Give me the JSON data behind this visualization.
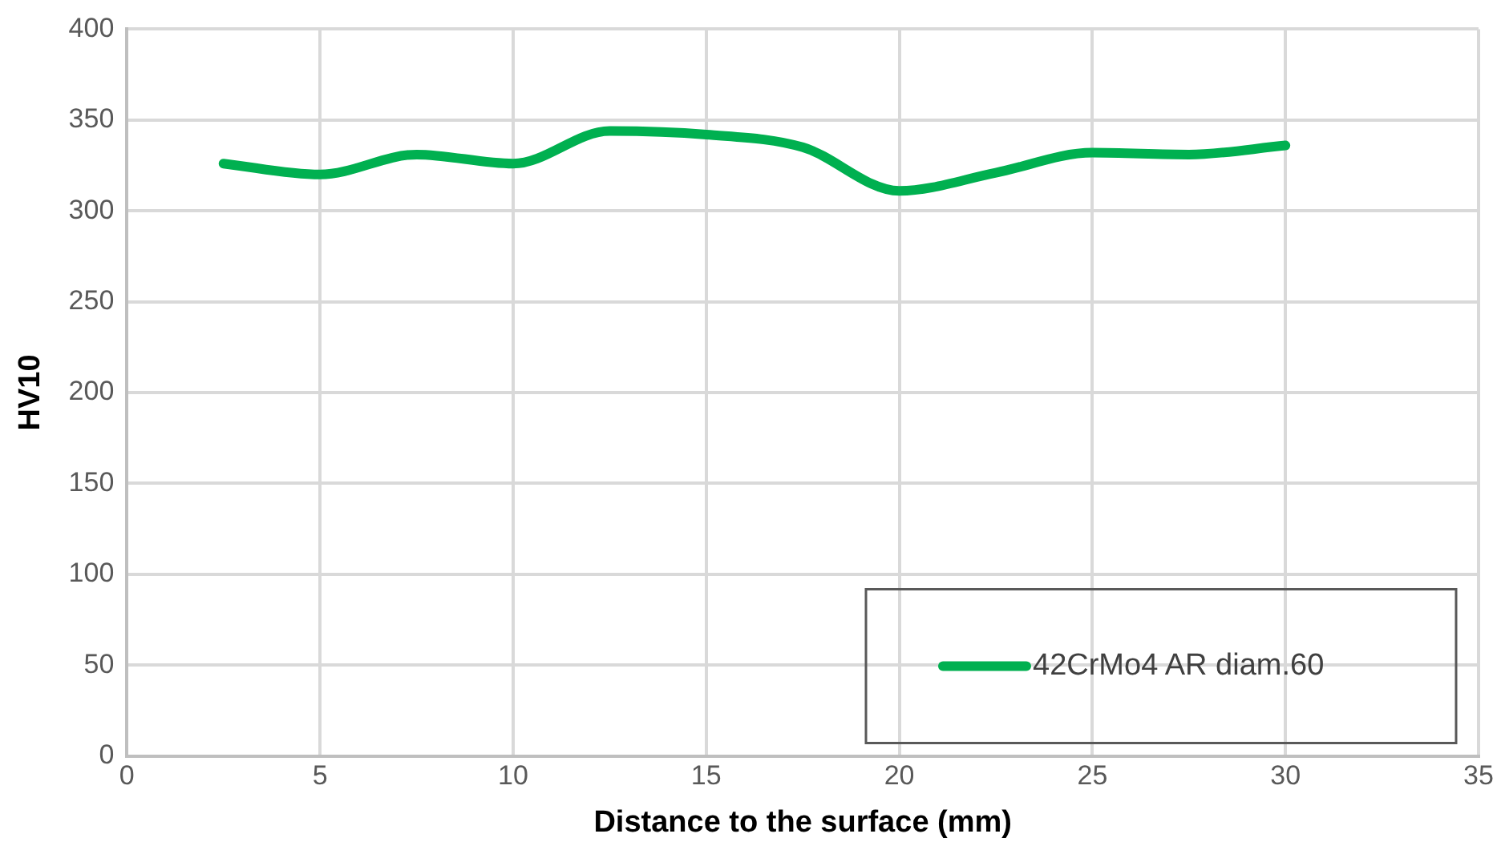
{
  "chart_data": {
    "type": "line",
    "xlabel": "Distance to the surface (mm)",
    "ylabel": "HV10",
    "x": [
      2.5,
      5,
      7.5,
      10,
      12.5,
      15,
      17.5,
      20,
      22.5,
      25,
      27.5,
      30
    ],
    "series": [
      {
        "name": "42CrMo4 AR diam.60",
        "color": "#00b050",
        "values": [
          326,
          320,
          331,
          326,
          344,
          342,
          335,
          311,
          321,
          332,
          331,
          336
        ]
      }
    ],
    "xlim": [
      0,
      35
    ],
    "xticks": [
      0,
      5,
      10,
      15,
      20,
      25,
      30,
      35
    ],
    "ylim": [
      0,
      400
    ],
    "yticks": [
      0,
      50,
      100,
      150,
      200,
      250,
      300,
      350,
      400
    ],
    "grid": true,
    "legend": "bottom right",
    "marker": "none",
    "line_style": "solid"
  }
}
